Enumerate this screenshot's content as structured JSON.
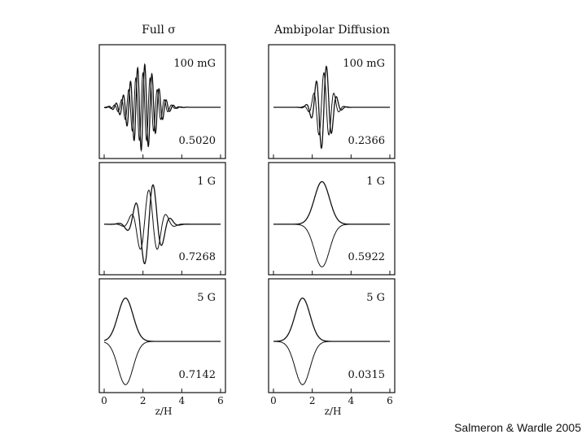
{
  "columns": [
    {
      "title": "Full σ"
    },
    {
      "title": "Ambipolar Diffusion"
    }
  ],
  "xlabel": "z/H",
  "credit": "Salmeron & Wardle 2005",
  "colors": {
    "ink": "#111111",
    "background": "#ffffff"
  },
  "chart_data": [
    {
      "type": "line",
      "column": "Full σ",
      "field": "100 mG",
      "value": "0.5020",
      "x": {
        "range": [
          0,
          6
        ],
        "ticks": [
          0,
          2,
          4,
          6
        ]
      },
      "profile": "oscillatory",
      "center": 2.0,
      "amplitude": 1.0,
      "oscillation_frequency": 6.5,
      "decay": "wide",
      "series": [
        {
          "name": "",
          "symmetry": "odd"
        },
        {
          "name": "",
          "symmetry": "even"
        }
      ]
    },
    {
      "type": "line",
      "column": "Ambipolar Diffusion",
      "field": "100 mG",
      "value": "0.2366",
      "x": {
        "range": [
          0,
          6
        ],
        "ticks": [
          0,
          2,
          4,
          6
        ]
      },
      "profile": "oscillatory",
      "center": 2.6,
      "amplitude": 1.0,
      "oscillation_frequency": 4.5,
      "decay": "narrow",
      "series": [
        {
          "name": "",
          "symmetry": "odd"
        },
        {
          "name": "",
          "symmetry": "even"
        }
      ]
    },
    {
      "type": "line",
      "column": "Full σ",
      "field": "1 G",
      "value": "0.7268",
      "x": {
        "range": [
          0,
          6
        ],
        "ticks": [
          0,
          2,
          4,
          6
        ]
      },
      "profile": "oscillatory",
      "center": 2.3,
      "amplitude": 1.0,
      "oscillation_frequency": 2.6,
      "decay": "medium",
      "series": [
        {
          "name": "",
          "symmetry": "odd"
        },
        {
          "name": "",
          "symmetry": "even"
        }
      ]
    },
    {
      "type": "line",
      "column": "Ambipolar Diffusion",
      "field": "1 G",
      "value": "0.5922",
      "x": {
        "range": [
          0,
          6
        ],
        "ticks": [
          0,
          2,
          4,
          6
        ]
      },
      "profile": "peak",
      "center": 2.5,
      "amplitude": 1.0,
      "series": [
        {
          "name": "",
          "symmetry": "upper"
        },
        {
          "name": "",
          "symmetry": "lower"
        }
      ]
    },
    {
      "type": "line",
      "column": "Full σ",
      "field": "5 G",
      "value": "0.7142",
      "x": {
        "range": [
          0,
          6
        ],
        "ticks": [
          0,
          2,
          4,
          6
        ]
      },
      "profile": "peak",
      "center": 1.1,
      "amplitude": 1.0,
      "series": [
        {
          "name": "",
          "symmetry": "upper"
        },
        {
          "name": "",
          "symmetry": "lower"
        }
      ]
    },
    {
      "type": "line",
      "column": "Ambipolar Diffusion",
      "field": "5 G",
      "value": "0.0315",
      "x": {
        "range": [
          0,
          6
        ],
        "ticks": [
          0,
          2,
          4,
          6
        ]
      },
      "profile": "peak",
      "center": 1.5,
      "amplitude": 1.0,
      "series": [
        {
          "name": "",
          "symmetry": "upper"
        },
        {
          "name": "",
          "symmetry": "lower"
        }
      ]
    }
  ]
}
